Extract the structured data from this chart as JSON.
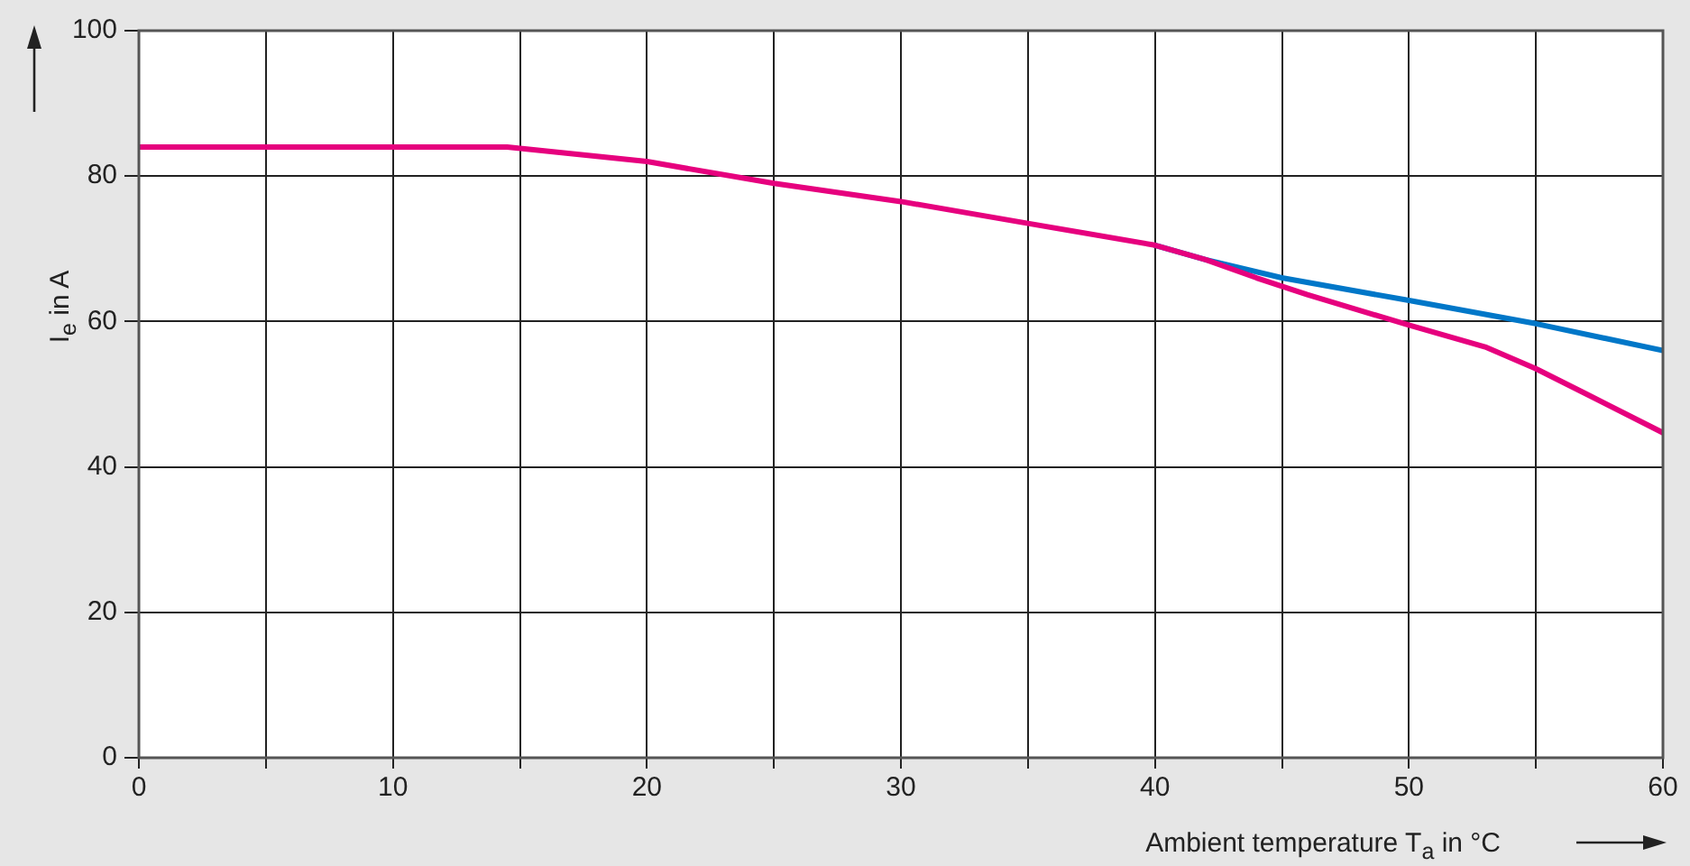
{
  "chart_data": {
    "type": "line",
    "xlabel": "Ambient temperature T$_{a}$ in °C",
    "ylabel": "I$_{e}$  in A",
    "xlim": [
      0,
      60
    ],
    "xticks": [
      0,
      {
        "value": 5,
        "label": null
      },
      10,
      {
        "value": 15,
        "label": null
      },
      20,
      {
        "value": 25,
        "label": null
      },
      30,
      {
        "value": 35,
        "label": null
      },
      40,
      {
        "value": 45,
        "label": null
      },
      50,
      {
        "value": 55,
        "label": null
      },
      60
    ],
    "ylim": [
      0,
      100
    ],
    "yticks": [
      0,
      20,
      40,
      60,
      80,
      100
    ],
    "grid": true,
    "legend": false,
    "marker": "none",
    "line_style": "solid",
    "series": [
      {
        "color": "#0077c8",
        "x": [
          40,
          42,
          45,
          50,
          55,
          60
        ],
        "values": [
          70.5,
          68.5,
          66,
          62.9,
          59.7,
          56
        ]
      },
      {
        "color": "#e6007e",
        "x": [
          0,
          14.5,
          20,
          25,
          30,
          35,
          40,
          42,
          44,
          46,
          50,
          53,
          55,
          57,
          60
        ],
        "values": [
          84,
          84,
          82,
          79,
          76.5,
          73.5,
          70.5,
          68.5,
          66,
          63.7,
          59.5,
          56.5,
          53.5,
          50,
          44.7
        ]
      }
    ]
  }
}
